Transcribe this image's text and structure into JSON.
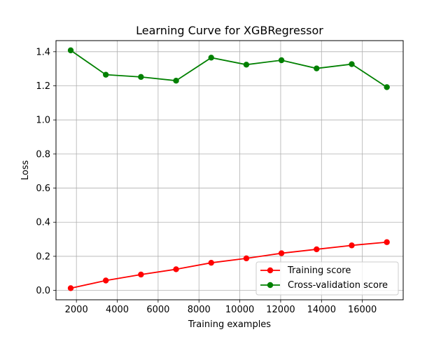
{
  "chart_data": {
    "type": "line",
    "title": "Learning Curve for XGBRegressor",
    "xlabel": "Training examples",
    "ylabel": "Loss",
    "xlim": [
      1000,
      18000
    ],
    "ylim": [
      -0.055,
      1.465
    ],
    "xticks": [
      2000,
      4000,
      6000,
      8000,
      10000,
      12000,
      14000,
      16000
    ],
    "xtick_labels": [
      "2000",
      "4000",
      "6000",
      "8000",
      "10000",
      "12000",
      "14000",
      "16000"
    ],
    "yticks": [
      0.0,
      0.2,
      0.4,
      0.6,
      0.8,
      1.0,
      1.2,
      1.4
    ],
    "ytick_labels": [
      "0.0",
      "0.2",
      "0.4",
      "0.6",
      "0.8",
      "1.0",
      "1.2",
      "1.4"
    ],
    "grid": true,
    "legend_position": "lower-right",
    "x": [
      1720,
      3440,
      5160,
      6880,
      8600,
      10320,
      12040,
      13760,
      15480,
      17200
    ],
    "series": [
      {
        "name": "Training score",
        "color": "#ff0000",
        "values": [
          0.013,
          0.058,
          0.093,
          0.124,
          0.162,
          0.188,
          0.218,
          0.241,
          0.264,
          0.283
        ]
      },
      {
        "name": "Cross-validation score",
        "color": "#008000",
        "values": [
          1.408,
          1.265,
          1.252,
          1.23,
          1.365,
          1.324,
          1.35,
          1.302,
          1.327,
          1.192
        ]
      }
    ]
  }
}
